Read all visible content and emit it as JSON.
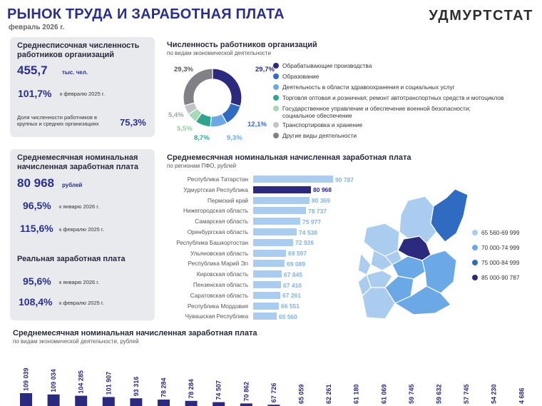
{
  "header": {
    "title": "РЫНОК ТРУДА И ЗАРАБОТНАЯ ПЛАТА",
    "date": "февраль 2026 г.",
    "org": "УДМУРТСТАТ"
  },
  "employment_panel": {
    "title": "Среднесписочная численность работников организаций",
    "value": "455,7",
    "unit": "тыс. чел.",
    "change_value": "101,7%",
    "change_label": "к февралю 2025 г.",
    "share_label": "Доля численности работников в крупных и средних организациях",
    "share_value": "75,3%"
  },
  "wage_panel": {
    "title": "Среднемесячная номинальная начисленная заработная плата",
    "value": "80 968",
    "unit": "рублей",
    "change1_value": "96,5%",
    "change1_label": "к январю 2026 г.",
    "change2_value": "115,6%",
    "change2_label": "к февралю 2025 г.",
    "real_title": "Реальная заработная плата",
    "real1_value": "95,6%",
    "real1_label": "к январю 2026 г.",
    "real2_value": "108,4%",
    "real2_label": "к февралю 2025 г."
  },
  "donut_section": {
    "title": "Численность работников организаций",
    "subtitle": "по видам экономической деятельности"
  },
  "regions_section": {
    "title": "Среднемесячная номинальная начисленная заработная плата",
    "subtitle": "по регионам ПФО, рублей"
  },
  "industries_section": {
    "title": "Среднемесячная номинальная начисленная заработная плата",
    "subtitle": "по видам экономической деятельности, рублей"
  },
  "map_legend": [
    {
      "label": "65 560-69 999",
      "color": "#a9ccef"
    },
    {
      "label": "70 000-74 999",
      "color": "#6aa9e5"
    },
    {
      "label": "75 000-84 999",
      "color": "#2f6bc0"
    },
    {
      "label": "85 000-90 787",
      "color": "#2b2a7e"
    }
  ],
  "chart_data": [
    {
      "type": "pie",
      "categories": [
        "Обрабатывающие производства",
        "Образование",
        "Деятельность в области здравоохранения и социальных услуг",
        "Торговля оптовая и розничная; ремонт автотранспортных средств и мотоциклов",
        "Государственное управление и обеспечение военной безопасности; социальное обеспечение",
        "Транспортировка и хранение",
        "Другие виды деятельности"
      ],
      "values": [
        29.7,
        12.1,
        9.3,
        8.7,
        5.5,
        5.4,
        29.3
      ],
      "value_labels": [
        "29,7%",
        "12,1%",
        "9,3%",
        "8,7%",
        "5,5%",
        "5,4%",
        "29,3%"
      ],
      "colors": [
        "#2b2a7e",
        "#2f6bc0",
        "#6aa9e5",
        "#2fa58f",
        "#a6d9b5",
        "#c4c4c8",
        "#808085"
      ]
    },
    {
      "type": "bar",
      "orientation": "horizontal",
      "categories": [
        "Республика Татарстан",
        "Удмуртская Республика",
        "Пермский край",
        "Нижегородская область",
        "Самарская область",
        "Оренбургская область",
        "Республика Башкортостан",
        "Ульяновская область",
        "Республика Марий Эл",
        "Кировская область",
        "Пензенская область",
        "Саратовская область",
        "Республика Мордовия",
        "Чувашская Республика"
      ],
      "values": [
        90787,
        80968,
        80369,
        78737,
        75977,
        74538,
        72926,
        69597,
        69089,
        67845,
        67410,
        67261,
        66551,
        65560
      ],
      "value_labels": [
        "90 787",
        "80 968",
        "80 369",
        "78 737",
        "75 977",
        "74 538",
        "72 926",
        "69 597",
        "69 089",
        "67 845",
        "67 410",
        "67 261",
        "66 551",
        "65 560"
      ],
      "highlight": "Удмуртская Республика",
      "colors": {
        "bar": "#a9ccef",
        "highlight": "#2b2a7e",
        "label": "#7fb2e6"
      }
    },
    {
      "type": "bar",
      "orientation": "vertical",
      "values": [
        109039,
        109034,
        104285,
        101907,
        93316,
        78284,
        78284,
        74507,
        70862,
        67726,
        65059,
        62261,
        61180,
        61069,
        59745,
        59632,
        57745,
        54230,
        4686
      ],
      "value_labels": [
        "109 039",
        "109 034",
        "104 285",
        "101 907",
        "93 316",
        "78 284",
        "78 284",
        "74 507",
        "70 862",
        "67 726",
        "65 059",
        "62 261",
        "61 180",
        "61 069",
        "59 745",
        "59 632",
        "57 745",
        "54 230",
        "4 686"
      ],
      "colors": {
        "bar": "#2b2a7e"
      }
    }
  ]
}
